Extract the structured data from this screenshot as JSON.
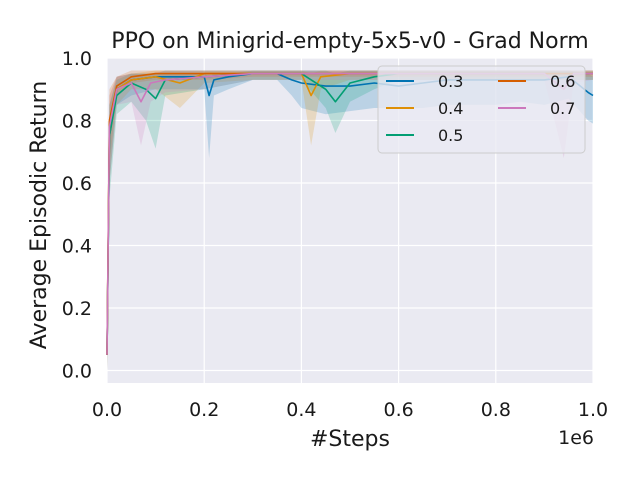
{
  "chart_data": {
    "type": "line",
    "title": "PPO on Minigrid-empty-5x5-v0 - Grad Norm",
    "xlabel": "#Steps",
    "ylabel": "Average Episodic Return",
    "x_offset_text": "1e6",
    "xlim": [
      0.0,
      1.0
    ],
    "ylim": [
      -0.04,
      1.0
    ],
    "xticks": [
      "0.0",
      "0.2",
      "0.4",
      "0.6",
      "0.8",
      "1.0"
    ],
    "yticks": [
      "0.0",
      "0.2",
      "0.4",
      "0.6",
      "0.8",
      "1.0"
    ],
    "xtick_values": [
      0.0,
      0.2,
      0.4,
      0.6,
      0.8,
      1.0
    ],
    "ytick_values": [
      0.0,
      0.2,
      0.4,
      0.6,
      0.8,
      1.0
    ],
    "grid": true,
    "legend_position": "top-right",
    "legend_columns": 2,
    "series": [
      {
        "name": "0.3",
        "color": "#0173b2",
        "x": [
          0.0,
          0.005,
          0.02,
          0.05,
          0.1,
          0.2,
          0.21,
          0.22,
          0.25,
          0.3,
          0.35,
          0.38,
          0.4,
          0.45,
          0.5,
          0.55,
          0.6,
          0.65,
          0.7,
          0.75,
          0.8,
          0.85,
          0.9,
          0.95,
          0.99,
          1.0
        ],
        "mean": [
          0.05,
          0.75,
          0.9,
          0.93,
          0.94,
          0.94,
          0.88,
          0.93,
          0.94,
          0.95,
          0.95,
          0.93,
          0.92,
          0.91,
          0.91,
          0.92,
          0.91,
          0.92,
          0.93,
          0.93,
          0.93,
          0.93,
          0.93,
          0.94,
          0.89,
          0.88
        ],
        "lower": [
          0.0,
          0.6,
          0.85,
          0.88,
          0.9,
          0.9,
          0.68,
          0.88,
          0.9,
          0.93,
          0.93,
          0.88,
          0.84,
          0.82,
          0.83,
          0.84,
          0.84,
          0.84,
          0.85,
          0.85,
          0.85,
          0.86,
          0.85,
          0.87,
          0.8,
          0.79
        ],
        "upper": [
          0.1,
          0.85,
          0.94,
          0.95,
          0.95,
          0.95,
          0.94,
          0.95,
          0.95,
          0.96,
          0.96,
          0.96,
          0.96,
          0.96,
          0.96,
          0.96,
          0.96,
          0.96,
          0.96,
          0.96,
          0.96,
          0.96,
          0.96,
          0.96,
          0.95,
          0.94
        ]
      },
      {
        "name": "0.4",
        "color": "#de8f05",
        "x": [
          0.0,
          0.005,
          0.02,
          0.05,
          0.1,
          0.15,
          0.2,
          0.3,
          0.4,
          0.42,
          0.44,
          0.5,
          0.6,
          0.7,
          0.8,
          0.9,
          1.0
        ],
        "mean": [
          0.05,
          0.78,
          0.9,
          0.93,
          0.94,
          0.92,
          0.95,
          0.95,
          0.95,
          0.88,
          0.94,
          0.95,
          0.95,
          0.95,
          0.95,
          0.95,
          0.95
        ],
        "lower": [
          0.0,
          0.6,
          0.85,
          0.9,
          0.9,
          0.84,
          0.92,
          0.93,
          0.93,
          0.72,
          0.9,
          0.93,
          0.93,
          0.93,
          0.93,
          0.93,
          0.93
        ],
        "upper": [
          0.1,
          0.88,
          0.94,
          0.95,
          0.96,
          0.96,
          0.96,
          0.96,
          0.96,
          0.95,
          0.96,
          0.96,
          0.96,
          0.96,
          0.96,
          0.96,
          0.96
        ]
      },
      {
        "name": "0.5",
        "color": "#029e73",
        "x": [
          0.0,
          0.005,
          0.02,
          0.05,
          0.08,
          0.1,
          0.12,
          0.2,
          0.3,
          0.4,
          0.45,
          0.47,
          0.5,
          0.55,
          0.6,
          0.7,
          0.8,
          0.9,
          1.0
        ],
        "mean": [
          0.05,
          0.75,
          0.88,
          0.92,
          0.9,
          0.87,
          0.93,
          0.94,
          0.95,
          0.95,
          0.9,
          0.86,
          0.92,
          0.94,
          0.95,
          0.95,
          0.95,
          0.95,
          0.95
        ],
        "lower": [
          0.0,
          0.55,
          0.82,
          0.86,
          0.8,
          0.71,
          0.88,
          0.9,
          0.93,
          0.93,
          0.84,
          0.76,
          0.86,
          0.9,
          0.93,
          0.93,
          0.93,
          0.93,
          0.93
        ],
        "upper": [
          0.1,
          0.85,
          0.93,
          0.95,
          0.95,
          0.95,
          0.96,
          0.96,
          0.96,
          0.96,
          0.96,
          0.95,
          0.96,
          0.96,
          0.96,
          0.96,
          0.96,
          0.96,
          0.96
        ]
      },
      {
        "name": "0.6",
        "color": "#d55e00",
        "x": [
          0.0,
          0.005,
          0.02,
          0.05,
          0.1,
          0.2,
          0.3,
          0.4,
          0.5,
          0.6,
          0.7,
          0.8,
          0.9,
          1.0
        ],
        "mean": [
          0.05,
          0.8,
          0.91,
          0.94,
          0.95,
          0.95,
          0.95,
          0.95,
          0.95,
          0.95,
          0.95,
          0.95,
          0.95,
          0.95
        ],
        "lower": [
          0.0,
          0.65,
          0.88,
          0.92,
          0.93,
          0.93,
          0.94,
          0.94,
          0.94,
          0.94,
          0.94,
          0.94,
          0.94,
          0.94
        ],
        "upper": [
          0.1,
          0.9,
          0.94,
          0.96,
          0.96,
          0.96,
          0.96,
          0.96,
          0.96,
          0.96,
          0.96,
          0.96,
          0.96,
          0.96
        ]
      },
      {
        "name": "0.7",
        "color": "#cc78bc",
        "x": [
          0.0,
          0.005,
          0.02,
          0.05,
          0.07,
          0.09,
          0.12,
          0.2,
          0.3,
          0.4,
          0.5,
          0.6,
          0.7,
          0.8,
          0.9,
          0.94,
          0.96,
          1.0
        ],
        "mean": [
          0.05,
          0.78,
          0.9,
          0.92,
          0.86,
          0.92,
          0.93,
          0.94,
          0.95,
          0.95,
          0.95,
          0.95,
          0.95,
          0.95,
          0.95,
          0.9,
          0.95,
          0.95
        ],
        "lower": [
          0.0,
          0.6,
          0.85,
          0.86,
          0.72,
          0.86,
          0.89,
          0.9,
          0.93,
          0.93,
          0.93,
          0.93,
          0.93,
          0.93,
          0.93,
          0.68,
          0.92,
          0.93
        ],
        "upper": [
          0.1,
          0.88,
          0.94,
          0.95,
          0.95,
          0.95,
          0.96,
          0.96,
          0.96,
          0.96,
          0.96,
          0.96,
          0.96,
          0.96,
          0.96,
          0.96,
          0.96,
          0.96
        ]
      }
    ]
  }
}
